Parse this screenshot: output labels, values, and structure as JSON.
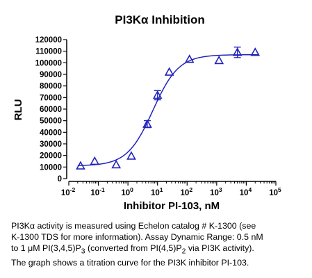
{
  "chart_data": {
    "type": "scatter",
    "title": "PI3Kα Inhibition",
    "xlabel": "Inhibitor PI-103, nM",
    "ylabel": "RLU",
    "xscale": "log",
    "xlim": [
      0.01,
      100000
    ],
    "ylim": [
      0,
      120000
    ],
    "x_ticks": [
      {
        "base": "10",
        "exp": "-2"
      },
      {
        "base": "10",
        "exp": "-1"
      },
      {
        "base": "10",
        "exp": "0"
      },
      {
        "base": "10",
        "exp": "1"
      },
      {
        "base": "10",
        "exp": "2"
      },
      {
        "base": "10",
        "exp": "3"
      },
      {
        "base": "10",
        "exp": "4"
      },
      {
        "base": "10",
        "exp": "5"
      }
    ],
    "y_ticks": [
      "0",
      "10000",
      "20000",
      "30000",
      "40000",
      "50000",
      "60000",
      "70000",
      "80000",
      "90000",
      "100000",
      "110000",
      "120000"
    ],
    "grid": false,
    "color": "#2222bb",
    "series": [
      {
        "points": [
          {
            "x": 0.025,
            "y": 11000,
            "err": 0
          },
          {
            "x": 0.075,
            "y": 15000,
            "err": 0
          },
          {
            "x": 0.4,
            "y": 12000,
            "err": 0
          },
          {
            "x": 1.3,
            "y": 19500,
            "err": 0
          },
          {
            "x": 4.5,
            "y": 47000,
            "err": 3000
          },
          {
            "x": 10,
            "y": 72000,
            "err": 4000
          },
          {
            "x": 25,
            "y": 92000,
            "err": 0
          },
          {
            "x": 120,
            "y": 103000,
            "err": 0
          },
          {
            "x": 1200,
            "y": 102000,
            "err": 0
          },
          {
            "x": 5000,
            "y": 109000,
            "err": 4500
          },
          {
            "x": 20000,
            "y": 109000,
            "err": 0
          }
        ],
        "fit_curve": {
          "bottom": 11000,
          "top": 107000,
          "ic50": 7.0,
          "hill": 1.0
        }
      }
    ]
  },
  "caption": {
    "line1": "PI3Kα activity is measured using Echelon catalog # K-1300 (see",
    "line2": "K-1300 TDS for more information).  Assay Dynamic Range: 0.5 nM",
    "line3_a": "to 1 μM PI(3,4,5)P",
    "line3_sub1": "3",
    "line3_b": " (converted from PI(4,5)P",
    "line3_sub2": "2",
    "line3_c": " via PI3K activity).",
    "line4": "The graph shows a titration curve for the PI3K inhibitor PI-103."
  }
}
